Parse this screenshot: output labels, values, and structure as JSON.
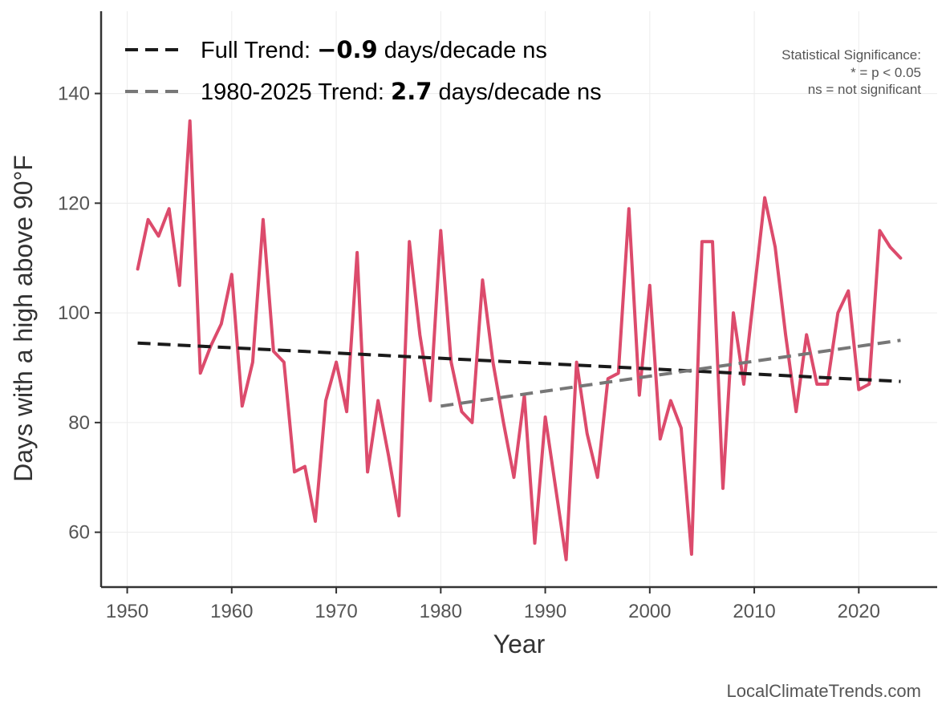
{
  "chart_data": {
    "type": "line",
    "title": "",
    "xlabel": "Year",
    "ylabel": "Days with a high above 90°F",
    "xlim": [
      1947.5,
      2027.5
    ],
    "ylim": [
      50,
      155
    ],
    "x_ticks": [
      1950,
      1960,
      1970,
      1980,
      1990,
      2000,
      2010,
      2020
    ],
    "y_ticks": [
      60,
      80,
      100,
      120,
      140
    ],
    "grid": true,
    "series": [
      {
        "name": "Days with a high above 90°F",
        "color": "#dc4b6c",
        "x": [
          1951,
          1952,
          1953,
          1954,
          1955,
          1956,
          1957,
          1958,
          1959,
          1960,
          1961,
          1962,
          1963,
          1964,
          1965,
          1966,
          1967,
          1968,
          1969,
          1970,
          1971,
          1972,
          1973,
          1974,
          1975,
          1976,
          1977,
          1978,
          1979,
          1980,
          1981,
          1982,
          1983,
          1984,
          1985,
          1986,
          1987,
          1988,
          1989,
          1990,
          1991,
          1992,
          1993,
          1994,
          1995,
          1996,
          1997,
          1998,
          1999,
          2000,
          2001,
          2002,
          2003,
          2004,
          2005,
          2006,
          2007,
          2008,
          2009,
          2010,
          2011,
          2012,
          2013,
          2014,
          2015,
          2016,
          2017,
          2018,
          2019,
          2020,
          2021,
          2022,
          2023,
          2024
        ],
        "values": [
          108,
          117,
          114,
          119,
          105,
          135,
          89,
          94,
          98,
          107,
          83,
          91,
          117,
          93,
          91,
          71,
          72,
          62,
          84,
          91,
          82,
          111,
          71,
          84,
          74,
          63,
          113,
          96,
          84,
          115,
          91,
          82,
          80,
          106,
          91,
          80,
          70,
          85,
          58,
          81,
          68,
          55,
          91,
          78,
          70,
          88,
          89,
          119,
          85,
          105,
          77,
          84,
          79,
          56,
          113,
          113,
          68,
          100,
          87,
          104,
          121,
          112,
          96,
          82,
          96,
          87,
          87,
          100,
          104,
          86,
          87,
          115,
          112,
          110
        ]
      }
    ],
    "trend_lines": [
      {
        "name": "Full Trend",
        "color": "#1a1a1a",
        "x": [
          1951,
          2024
        ],
        "y": [
          94.5,
          87.5
        ]
      },
      {
        "name": "1980-2025 Trend",
        "color": "#777777",
        "x": [
          1980,
          2024
        ],
        "y": [
          83.0,
          95.0
        ]
      }
    ],
    "legend": {
      "position": "top-left",
      "entries": [
        {
          "prefix": "Full Trend: ",
          "value": "−0.9",
          "suffix": " days/decade ns"
        },
        {
          "prefix": "1980-2025 Trend: ",
          "value": "2.7",
          "suffix": " days/decade ns"
        }
      ]
    },
    "significance_note": [
      "Statistical Significance:",
      "* = p < 0.05",
      "ns = not significant"
    ],
    "credit": "LocalClimateTrends.com"
  }
}
